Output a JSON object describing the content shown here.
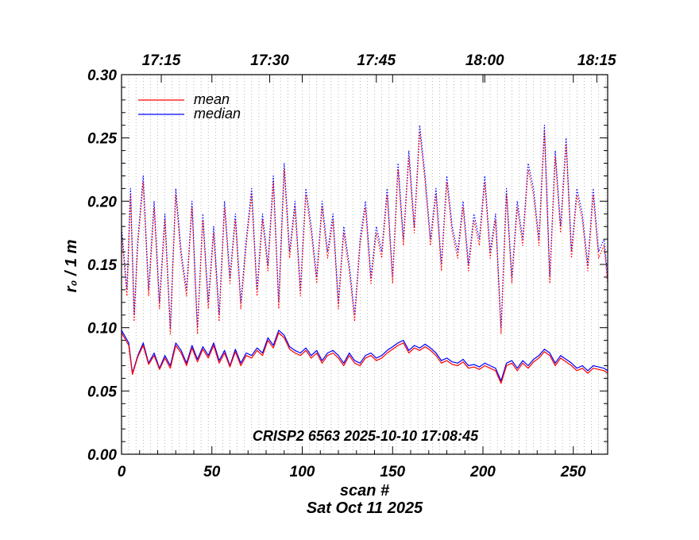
{
  "chart_data": {
    "type": "line",
    "xlabel": "scan #",
    "ylabel": "r₀ / 1 m",
    "date_label": "Sat Oct 11 2025",
    "annotation": "CRISP2 6563 2025-10-10 17:08:45",
    "xlim": [
      0,
      269
    ],
    "ylim": [
      0.0,
      0.3
    ],
    "x_ticks": [
      0,
      50,
      100,
      150,
      200,
      250
    ],
    "y_ticks": [
      0.0,
      0.05,
      0.1,
      0.15,
      0.2,
      0.25,
      0.3
    ],
    "y_tick_labels": [
      "0.00",
      "0.05",
      "0.10",
      "0.15",
      "0.20",
      "0.25",
      "0.30"
    ],
    "top_axis": {
      "ticks": [
        {
          "label": "17:15",
          "x": 22
        },
        {
          "label": "17:30",
          "x": 82
        },
        {
          "label": "17:45",
          "x": 141
        },
        {
          "label": "18:00",
          "x": 201
        },
        {
          "label": "18:15",
          "x": 263
        }
      ]
    },
    "grid": "vertical dotted every 4 scans",
    "legend": {
      "position": "top-left",
      "entries": [
        {
          "name": "mean",
          "color": "#ff0000"
        },
        {
          "name": "median",
          "color": "#0000ff"
        }
      ]
    },
    "series": [
      {
        "name": "median",
        "group": "lower (solid)",
        "color": "#0000ff",
        "x": [
          0,
          4,
          6,
          9,
          12,
          15,
          18,
          21,
          24,
          27,
          30,
          33,
          36,
          39,
          42,
          45,
          48,
          51,
          54,
          57,
          60,
          63,
          66,
          69,
          72,
          75,
          78,
          81,
          84,
          87,
          90,
          93,
          96,
          99,
          102,
          105,
          108,
          111,
          114,
          117,
          120,
          123,
          126,
          129,
          132,
          135,
          138,
          141,
          144,
          147,
          150,
          153,
          156,
          159,
          162,
          165,
          168,
          171,
          174,
          177,
          180,
          183,
          186,
          189,
          192,
          195,
          198,
          201,
          204,
          207,
          210,
          213,
          216,
          219,
          222,
          225,
          228,
          231,
          234,
          237,
          240,
          243,
          246,
          249,
          252,
          255,
          258,
          261,
          264,
          267,
          269
        ],
        "y": [
          0.098,
          0.088,
          0.064,
          0.078,
          0.088,
          0.072,
          0.08,
          0.068,
          0.078,
          0.07,
          0.088,
          0.082,
          0.072,
          0.086,
          0.075,
          0.085,
          0.078,
          0.088,
          0.074,
          0.082,
          0.07,
          0.083,
          0.072,
          0.08,
          0.078,
          0.084,
          0.08,
          0.092,
          0.086,
          0.098,
          0.094,
          0.085,
          0.082,
          0.08,
          0.084,
          0.078,
          0.082,
          0.074,
          0.08,
          0.082,
          0.078,
          0.072,
          0.08,
          0.074,
          0.072,
          0.078,
          0.08,
          0.076,
          0.078,
          0.082,
          0.085,
          0.088,
          0.09,
          0.082,
          0.086,
          0.084,
          0.087,
          0.084,
          0.08,
          0.074,
          0.076,
          0.073,
          0.072,
          0.075,
          0.07,
          0.071,
          0.069,
          0.072,
          0.07,
          0.068,
          0.058,
          0.072,
          0.074,
          0.068,
          0.074,
          0.07,
          0.075,
          0.078,
          0.083,
          0.08,
          0.072,
          0.078,
          0.075,
          0.072,
          0.068,
          0.07,
          0.066,
          0.07,
          0.069,
          0.068,
          0.066
        ]
      },
      {
        "name": "mean",
        "group": "lower (solid)",
        "color": "#ff0000",
        "x": [
          0,
          4,
          6,
          9,
          12,
          15,
          18,
          21,
          24,
          27,
          30,
          33,
          36,
          39,
          42,
          45,
          48,
          51,
          54,
          57,
          60,
          63,
          66,
          69,
          72,
          75,
          78,
          81,
          84,
          87,
          90,
          93,
          96,
          99,
          102,
          105,
          108,
          111,
          114,
          117,
          120,
          123,
          126,
          129,
          132,
          135,
          138,
          141,
          144,
          147,
          150,
          153,
          156,
          159,
          162,
          165,
          168,
          171,
          174,
          177,
          180,
          183,
          186,
          189,
          192,
          195,
          198,
          201,
          204,
          207,
          210,
          213,
          216,
          219,
          222,
          225,
          228,
          231,
          234,
          237,
          240,
          243,
          246,
          249,
          252,
          255,
          258,
          261,
          264,
          267,
          269
        ],
        "y": [
          0.096,
          0.086,
          0.063,
          0.077,
          0.086,
          0.071,
          0.078,
          0.067,
          0.076,
          0.068,
          0.086,
          0.08,
          0.07,
          0.084,
          0.073,
          0.083,
          0.076,
          0.086,
          0.072,
          0.08,
          0.069,
          0.081,
          0.07,
          0.078,
          0.076,
          0.082,
          0.078,
          0.09,
          0.084,
          0.096,
          0.092,
          0.083,
          0.08,
          0.078,
          0.082,
          0.076,
          0.08,
          0.072,
          0.078,
          0.08,
          0.076,
          0.07,
          0.078,
          0.072,
          0.07,
          0.076,
          0.078,
          0.074,
          0.076,
          0.08,
          0.083,
          0.086,
          0.088,
          0.08,
          0.084,
          0.082,
          0.085,
          0.082,
          0.078,
          0.072,
          0.074,
          0.071,
          0.07,
          0.073,
          0.068,
          0.069,
          0.067,
          0.07,
          0.068,
          0.066,
          0.056,
          0.07,
          0.072,
          0.066,
          0.072,
          0.068,
          0.073,
          0.076,
          0.081,
          0.078,
          0.07,
          0.076,
          0.073,
          0.07,
          0.066,
          0.068,
          0.064,
          0.068,
          0.067,
          0.066,
          0.064
        ]
      },
      {
        "name": "median",
        "group": "upper (dotted)",
        "color": "#0000ff",
        "x": [
          0,
          3,
          5,
          7,
          9,
          12,
          15,
          18,
          21,
          24,
          27,
          30,
          33,
          36,
          39,
          42,
          45,
          48,
          51,
          54,
          57,
          60,
          63,
          66,
          69,
          72,
          75,
          78,
          81,
          84,
          87,
          90,
          93,
          96,
          99,
          102,
          105,
          108,
          111,
          114,
          117,
          120,
          123,
          126,
          129,
          132,
          135,
          138,
          141,
          144,
          147,
          150,
          153,
          156,
          159,
          162,
          165,
          168,
          171,
          174,
          177,
          180,
          183,
          186,
          189,
          192,
          195,
          198,
          201,
          204,
          207,
          210,
          213,
          216,
          219,
          222,
          225,
          228,
          231,
          234,
          237,
          240,
          243,
          246,
          249,
          252,
          255,
          258,
          261,
          264,
          267,
          269
        ],
        "y": [
          0.18,
          0.13,
          0.21,
          0.11,
          0.17,
          0.22,
          0.13,
          0.2,
          0.12,
          0.19,
          0.1,
          0.21,
          0.16,
          0.13,
          0.2,
          0.1,
          0.19,
          0.12,
          0.18,
          0.11,
          0.2,
          0.14,
          0.19,
          0.12,
          0.17,
          0.21,
          0.13,
          0.19,
          0.15,
          0.22,
          0.12,
          0.23,
          0.16,
          0.2,
          0.13,
          0.21,
          0.18,
          0.14,
          0.2,
          0.16,
          0.19,
          0.12,
          0.18,
          0.15,
          0.11,
          0.17,
          0.2,
          0.14,
          0.18,
          0.16,
          0.21,
          0.14,
          0.23,
          0.17,
          0.24,
          0.18,
          0.26,
          0.22,
          0.17,
          0.21,
          0.15,
          0.22,
          0.18,
          0.16,
          0.2,
          0.15,
          0.19,
          0.17,
          0.22,
          0.16,
          0.19,
          0.1,
          0.21,
          0.14,
          0.2,
          0.17,
          0.23,
          0.21,
          0.17,
          0.26,
          0.14,
          0.24,
          0.18,
          0.25,
          0.16,
          0.21,
          0.19,
          0.15,
          0.21,
          0.16,
          0.17,
          0.14
        ]
      },
      {
        "name": "mean",
        "group": "upper (dotted)",
        "color": "#ff0000",
        "x": [
          0,
          3,
          5,
          7,
          9,
          12,
          15,
          18,
          21,
          24,
          27,
          30,
          33,
          36,
          39,
          42,
          45,
          48,
          51,
          54,
          57,
          60,
          63,
          66,
          69,
          72,
          75,
          78,
          81,
          84,
          87,
          90,
          93,
          96,
          99,
          102,
          105,
          108,
          111,
          114,
          117,
          120,
          123,
          126,
          129,
          132,
          135,
          138,
          141,
          144,
          147,
          150,
          153,
          156,
          159,
          162,
          165,
          168,
          171,
          174,
          177,
          180,
          183,
          186,
          189,
          192,
          195,
          198,
          201,
          204,
          207,
          210,
          213,
          216,
          219,
          222,
          225,
          228,
          231,
          234,
          237,
          240,
          243,
          246,
          249,
          252,
          255,
          258,
          261,
          264,
          267,
          269
        ],
        "y": [
          0.175,
          0.125,
          0.205,
          0.105,
          0.165,
          0.215,
          0.125,
          0.195,
          0.115,
          0.185,
          0.095,
          0.205,
          0.155,
          0.125,
          0.195,
          0.095,
          0.185,
          0.115,
          0.175,
          0.105,
          0.195,
          0.135,
          0.185,
          0.115,
          0.165,
          0.205,
          0.125,
          0.185,
          0.145,
          0.215,
          0.115,
          0.225,
          0.155,
          0.195,
          0.125,
          0.205,
          0.175,
          0.135,
          0.195,
          0.155,
          0.185,
          0.115,
          0.175,
          0.145,
          0.105,
          0.165,
          0.195,
          0.135,
          0.175,
          0.155,
          0.205,
          0.135,
          0.225,
          0.165,
          0.235,
          0.175,
          0.255,
          0.215,
          0.165,
          0.205,
          0.145,
          0.215,
          0.175,
          0.155,
          0.195,
          0.145,
          0.185,
          0.165,
          0.215,
          0.155,
          0.185,
          0.095,
          0.205,
          0.135,
          0.195,
          0.165,
          0.225,
          0.205,
          0.165,
          0.255,
          0.135,
          0.235,
          0.175,
          0.245,
          0.155,
          0.205,
          0.185,
          0.145,
          0.205,
          0.155,
          0.165,
          0.135
        ]
      }
    ]
  }
}
